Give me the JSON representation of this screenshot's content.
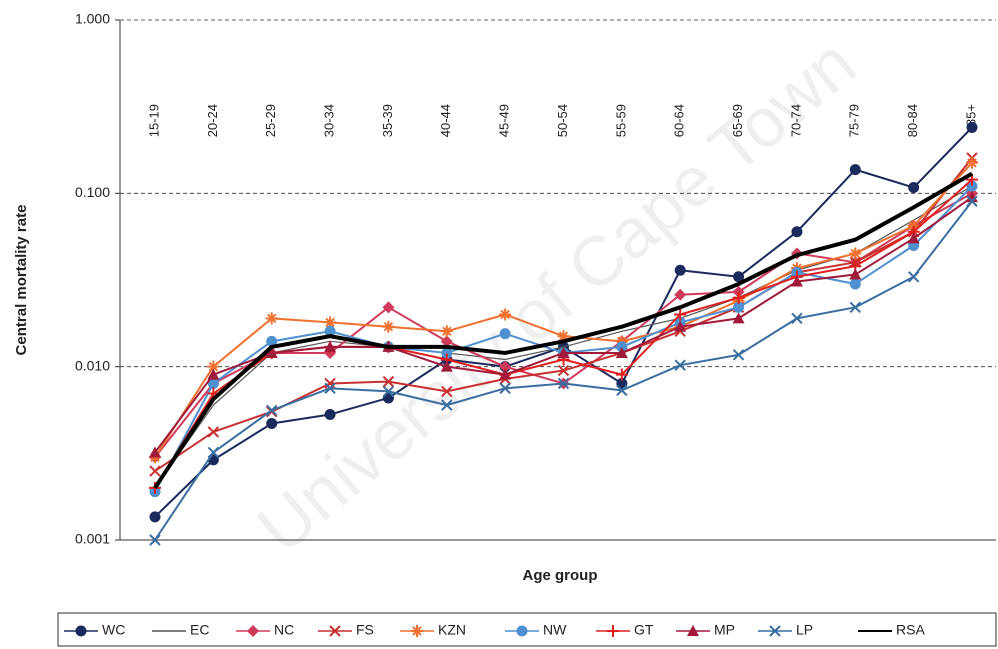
{
  "chart_data": {
    "type": "line",
    "log_scale": true,
    "grid": true,
    "watermark": "University of Cape Town",
    "x_label": "Age group",
    "y_label": "Central mortality rate",
    "categories": [
      "15-19",
      "20-24",
      "25-29",
      "30-34",
      "35-39",
      "40-44",
      "45-49",
      "50-54",
      "55-59",
      "60-64",
      "65-69",
      "70-74",
      "75-79",
      "80-84",
      "85+"
    ],
    "ylim": [
      0.001,
      1
    ],
    "yticks": [
      {
        "value": 1,
        "label": "1.000"
      },
      {
        "value": 0.1,
        "label": "0.100"
      },
      {
        "value": 0.01,
        "label": "0.010"
      },
      {
        "value": 0.001,
        "label": "0.001"
      }
    ],
    "legend": "bottom",
    "series": [
      {
        "name": "WC",
        "color": "#1b2a5c",
        "marker": "circle",
        "values": [
          0.00136,
          0.0029,
          0.0047,
          0.0053,
          0.0066,
          0.011,
          0.01,
          0.013,
          0.008,
          0.036,
          0.033,
          0.06,
          0.137,
          0.108,
          0.24
        ]
      },
      {
        "name": "EC",
        "color": "#555555",
        "marker": "none",
        "values": [
          0.002,
          0.006,
          0.012,
          0.014,
          0.013,
          0.012,
          0.011,
          0.013,
          0.016,
          0.019,
          0.025,
          0.036,
          0.045,
          0.07,
          0.11
        ]
      },
      {
        "name": "NC",
        "color": "#d03a5a",
        "marker": "diamond",
        "values": [
          0.003,
          0.008,
          0.012,
          0.012,
          0.022,
          0.014,
          0.01,
          0.008,
          0.014,
          0.026,
          0.027,
          0.045,
          0.04,
          0.065,
          0.1
        ]
      },
      {
        "name": "FS",
        "color": "#c83030",
        "marker": "x",
        "values": [
          0.0025,
          0.0042,
          0.0055,
          0.008,
          0.0082,
          0.0072,
          0.0085,
          0.0095,
          0.012,
          0.016,
          0.022,
          0.035,
          0.04,
          0.06,
          0.16
        ]
      },
      {
        "name": "KZN",
        "color": "#f07030",
        "marker": "star",
        "values": [
          0.003,
          0.01,
          0.019,
          0.018,
          0.017,
          0.016,
          0.02,
          0.015,
          0.014,
          0.017,
          0.024,
          0.037,
          0.045,
          0.065,
          0.15
        ]
      },
      {
        "name": "NW",
        "color": "#4f90d0",
        "marker": "circle",
        "values": [
          0.0019,
          0.008,
          0.014,
          0.016,
          0.013,
          0.012,
          0.0155,
          0.012,
          0.013,
          0.018,
          0.022,
          0.035,
          0.03,
          0.05,
          0.11
        ]
      },
      {
        "name": "GT",
        "color": "#e02020",
        "marker": "plus",
        "values": [
          0.002,
          0.007,
          0.012,
          0.013,
          0.013,
          0.011,
          0.009,
          0.011,
          0.009,
          0.02,
          0.025,
          0.033,
          0.038,
          0.06,
          0.12
        ]
      },
      {
        "name": "MP",
        "color": "#a01a3a",
        "marker": "triangle",
        "values": [
          0.0032,
          0.009,
          0.012,
          0.013,
          0.013,
          0.01,
          0.009,
          0.012,
          0.012,
          0.017,
          0.019,
          0.031,
          0.034,
          0.055,
          0.095
        ]
      },
      {
        "name": "LP",
        "color": "#3a6ea0",
        "marker": "x",
        "values": [
          0.001,
          0.0032,
          0.0056,
          0.0075,
          0.0072,
          0.006,
          0.0075,
          0.008,
          0.0073,
          0.0102,
          0.0117,
          0.019,
          0.022,
          0.033,
          0.09
        ]
      },
      {
        "name": "RSA",
        "color": "#000000",
        "marker": "none",
        "values": [
          0.002,
          0.0065,
          0.013,
          0.015,
          0.013,
          0.013,
          0.012,
          0.014,
          0.017,
          0.022,
          0.03,
          0.044,
          0.054,
          0.083,
          0.13
        ]
      }
    ]
  }
}
